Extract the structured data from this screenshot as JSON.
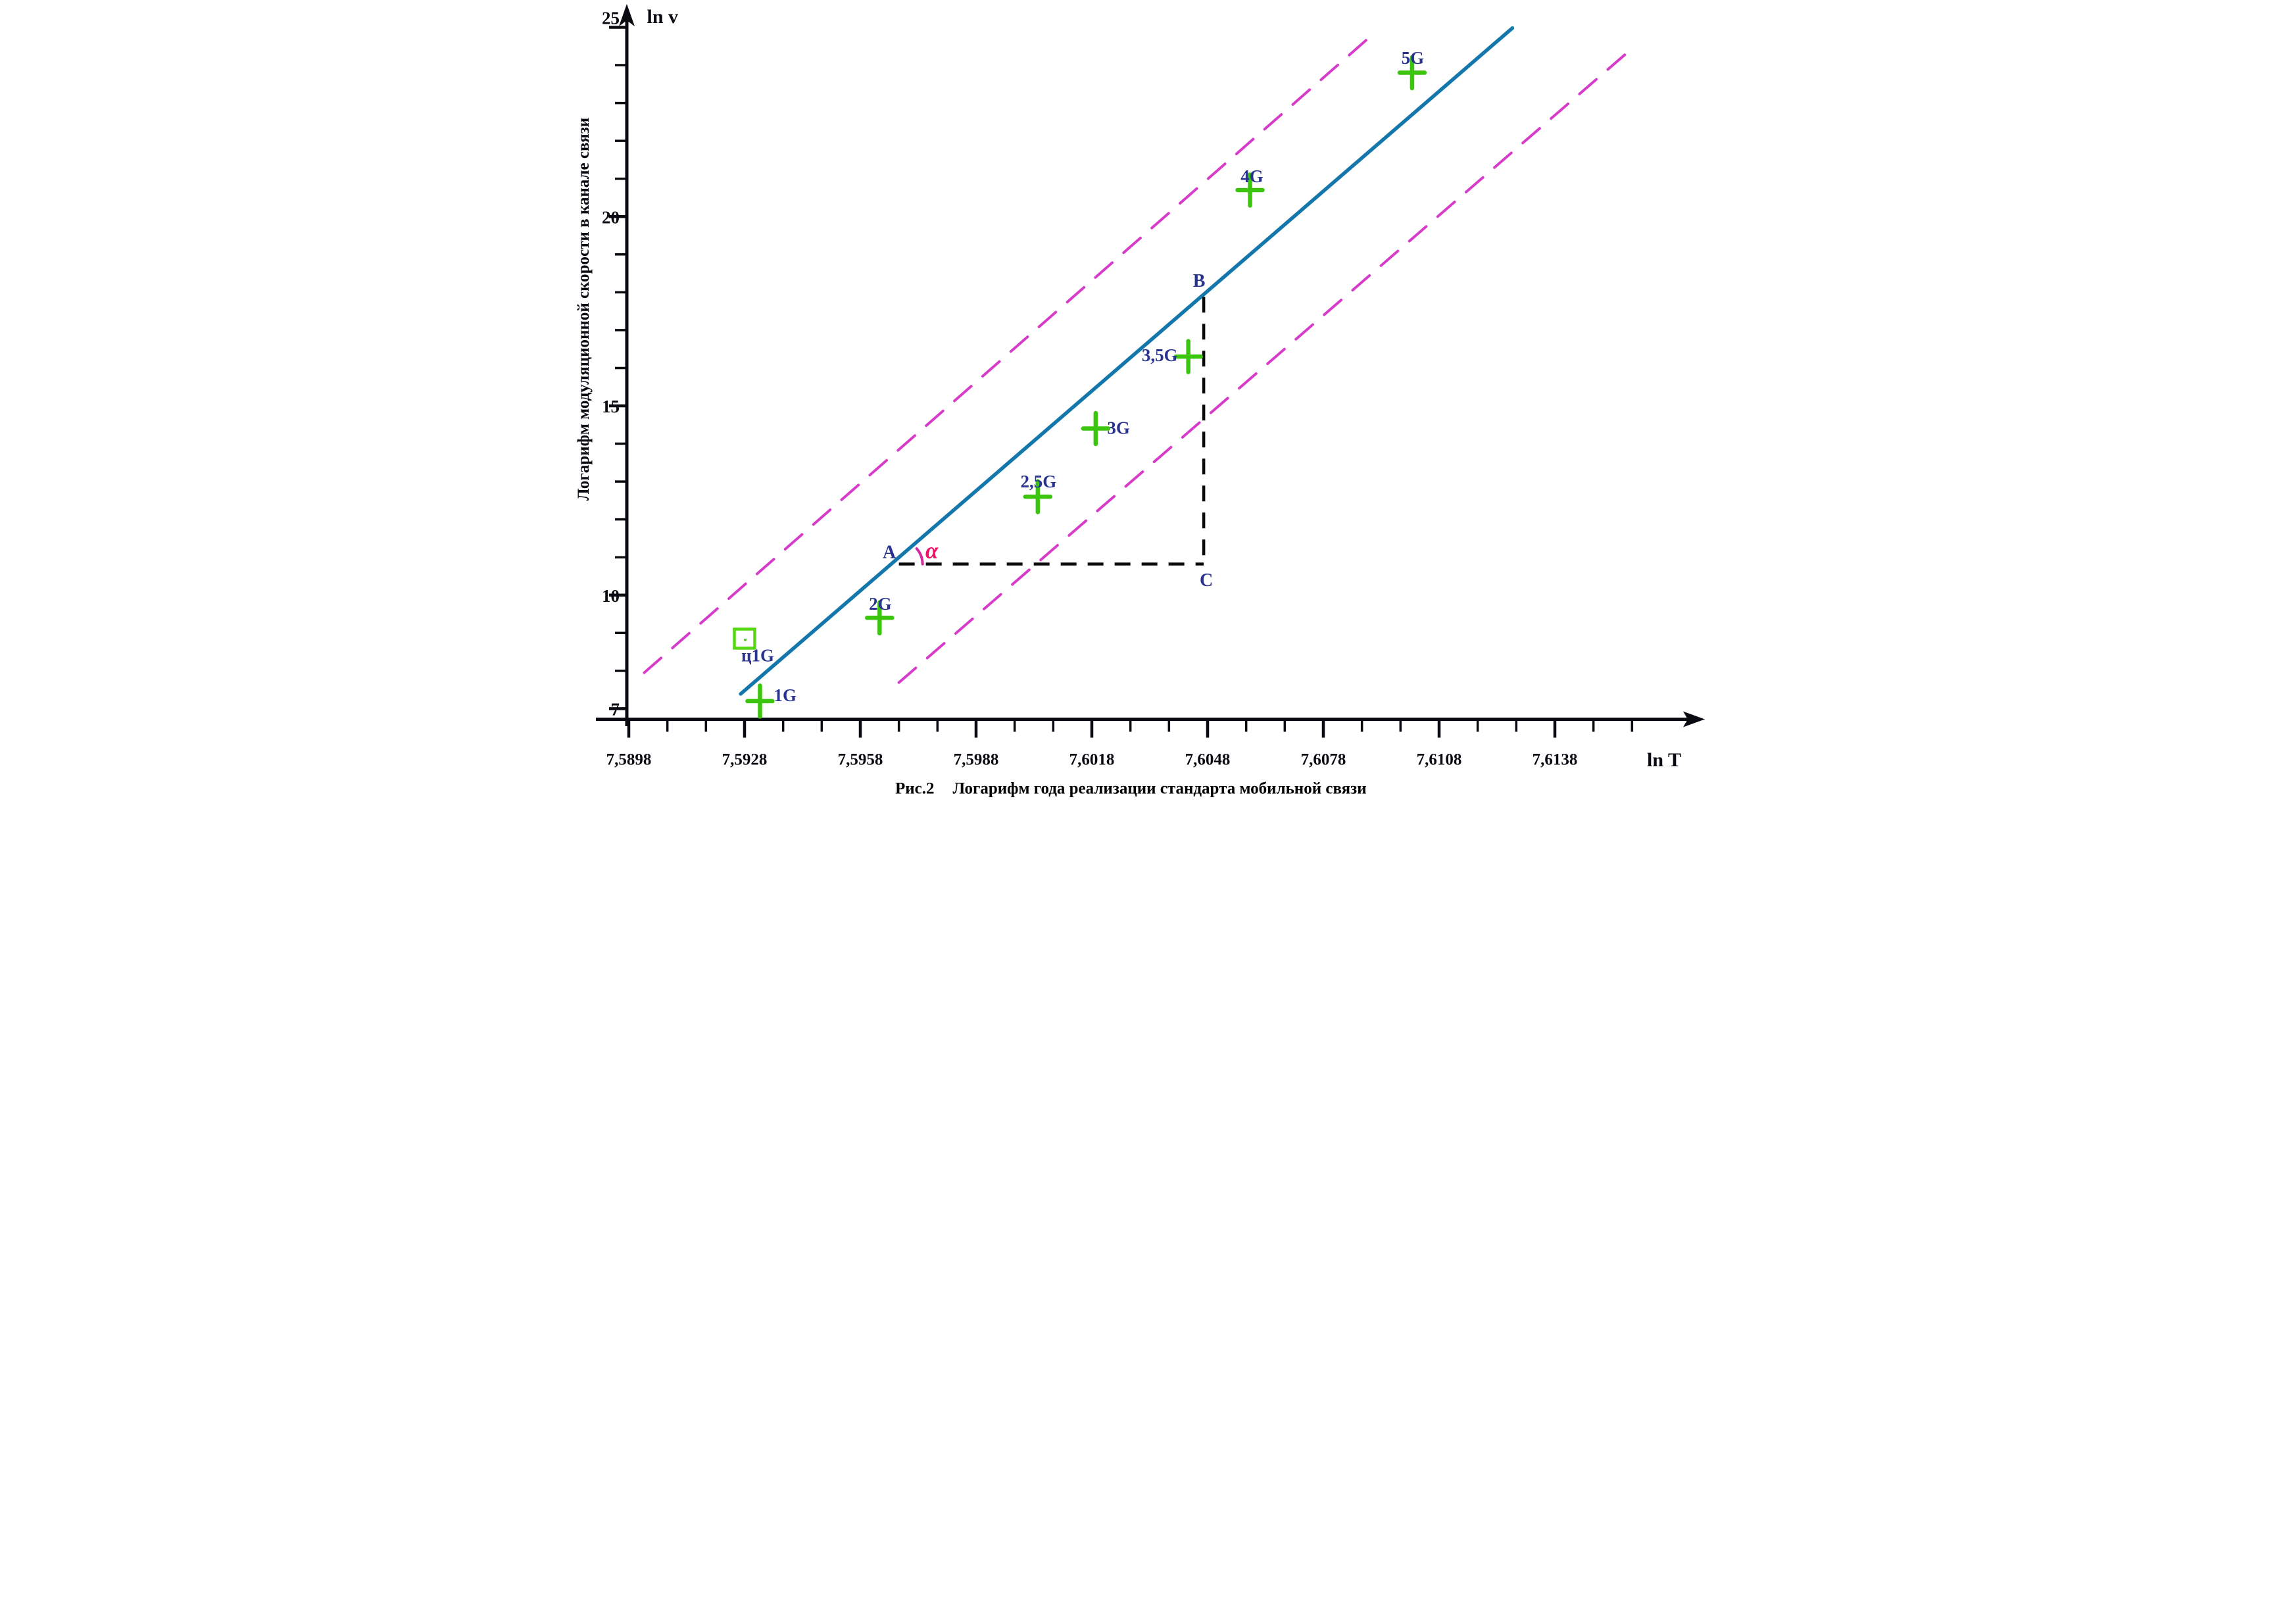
{
  "figure": {
    "caption_prefix": "Рис.2",
    "caption_text": "Логарифм года реализации стандарта мобильной связи",
    "y_axis_title": "Логарифм модуляционной скорости в канале связи",
    "y_axis_unit_label": "ln v",
    "x_axis_unit_label": "ln T"
  },
  "chart_data": {
    "type": "scatter",
    "title": "Рис.2 Логарифм года реализации стандарта мобильной связи",
    "xlabel": "ln T",
    "ylabel": "ln v",
    "xlim": [
      7.5888,
      7.6168
    ],
    "ylim": [
      6.7,
      25.5
    ],
    "grid": false,
    "legend": "none",
    "x_ticks": [
      {
        "value": 7.5898,
        "label": "7,5898"
      },
      {
        "value": 7.5928,
        "label": "7,5928"
      },
      {
        "value": 7.5958,
        "label": "7,5958"
      },
      {
        "value": 7.5988,
        "label": "7,5988"
      },
      {
        "value": 7.6018,
        "label": "7,6018"
      },
      {
        "value": 7.6048,
        "label": "7,6048"
      },
      {
        "value": 7.6078,
        "label": "7,6078"
      },
      {
        "value": 7.6108,
        "label": "7,6108"
      },
      {
        "value": 7.6138,
        "label": "7,6138"
      }
    ],
    "x_minor_step": 0.001,
    "x_minor_range": [
      7.5898,
      7.6158
    ],
    "y_ticks": [
      {
        "value": 25,
        "label": "25"
      },
      {
        "value": 20,
        "label": "20"
      },
      {
        "value": 15,
        "label": "15"
      },
      {
        "value": 10,
        "label": "10"
      },
      {
        "value": 7,
        "label": "7"
      }
    ],
    "y_minor_step": 1,
    "y_minor_range": [
      7,
      25
    ],
    "points": [
      {
        "label": "1G",
        "x": 7.5932,
        "y": 7.2,
        "marker": "cross"
      },
      {
        "label": "ц1G",
        "x": 7.5928,
        "y": 8.85,
        "marker": "square"
      },
      {
        "label": "2G",
        "x": 7.5963,
        "y": 9.4,
        "marker": "cross"
      },
      {
        "label": "2,5G",
        "x": 7.6004,
        "y": 12.6,
        "marker": "cross"
      },
      {
        "label": "3G",
        "x": 7.6019,
        "y": 14.4,
        "marker": "cross"
      },
      {
        "label": "3,5G",
        "x": 7.6043,
        "y": 16.3,
        "marker": "cross"
      },
      {
        "label": "4G",
        "x": 7.6059,
        "y": 20.7,
        "marker": "cross"
      },
      {
        "label": "5G",
        "x": 7.6101,
        "y": 23.8,
        "marker": "cross"
      }
    ],
    "regression_line": {
      "x1": 7.5927,
      "y1": 7.39,
      "x2": 7.6127,
      "y2": 24.98
    },
    "confidence_bands": [
      {
        "name": "upper",
        "x1": 7.5902,
        "y1": 7.95,
        "x2": 7.609,
        "y2": 24.74
      },
      {
        "name": "lower",
        "x1": 7.5968,
        "y1": 7.69,
        "x2": 7.6158,
        "y2": 24.44
      }
    ],
    "construction": {
      "A": {
        "label": "A",
        "x": 7.5968,
        "y": 10.82
      },
      "B": {
        "label": "B",
        "x": 7.6047,
        "y": 17.88
      },
      "C": {
        "label": "C",
        "x": 7.6047,
        "y": 10.82
      },
      "angle_label": "α"
    },
    "colors": {
      "regression_line": "#1477ac",
      "confidence_band": "#d63bc9",
      "cross_marker": "#3cc50f",
      "square_marker": "#56d714",
      "point_label": "#2a3490",
      "construction_dash": "#0b0b0b",
      "construction_label": "#2a3490",
      "angle_arc": "#d02a9e",
      "angle_label": "#ee0f67",
      "axis": "#0a0a12"
    }
  }
}
